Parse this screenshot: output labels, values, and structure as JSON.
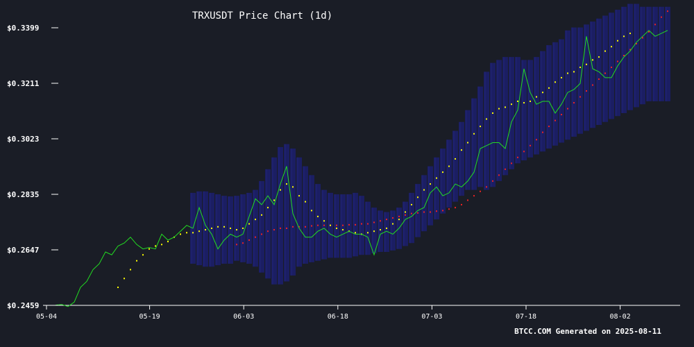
{
  "chart_data": {
    "type": "line",
    "title": "TRXUSDT Price Chart (1d)",
    "footer": "BTCC.COM Generated on 2025-08-11",
    "ylim": [
      0.2459,
      0.3399
    ],
    "y_ticks": [
      "$0.2459",
      "$0.2647",
      "$0.2835",
      "$0.3023",
      "$0.3211",
      "$0.3399"
    ],
    "y_tick_values": [
      0.2459,
      0.2647,
      0.2835,
      0.3023,
      0.3211,
      0.3399
    ],
    "x_ticks": [
      "05-04",
      "05-19",
      "06-03",
      "06-18",
      "07-03",
      "07-18",
      "08-02"
    ],
    "x_tick_index": [
      0,
      15,
      30,
      45,
      60,
      75,
      90
    ],
    "grid": false,
    "legend": "none",
    "colors": {
      "background": "#1a1d26",
      "price": "#22dd22",
      "ma20": "#ffff00",
      "ma50": "#ee2222",
      "bollinger": "#1c1f6e",
      "axis": "#ffffff"
    },
    "series": [
      {
        "key": "price",
        "values": [
          0.246,
          0.2462,
          0.2455,
          0.247,
          0.252,
          0.254,
          0.258,
          0.26,
          0.264,
          0.263,
          0.266,
          0.267,
          0.269,
          0.2665,
          0.265,
          0.2655,
          0.265,
          0.27,
          0.268,
          0.269,
          0.271,
          0.273,
          0.272,
          0.279,
          0.273,
          0.27,
          0.265,
          0.268,
          0.27,
          0.269,
          0.27,
          0.276,
          0.282,
          0.28,
          0.283,
          0.28,
          0.287,
          0.293,
          0.277,
          0.272,
          0.269,
          0.269,
          0.271,
          0.272,
          0.27,
          0.269,
          0.27,
          0.271,
          0.27,
          0.27,
          0.269,
          0.263,
          0.27,
          0.271,
          0.27,
          0.272,
          0.275,
          0.276,
          0.278,
          0.279,
          0.284,
          0.286,
          0.283,
          0.284,
          0.287,
          0.286,
          0.288,
          0.291,
          0.299,
          0.3,
          0.301,
          0.301,
          0.299,
          0.308,
          0.312,
          0.326,
          0.318,
          0.314,
          0.315,
          0.315,
          0.311,
          0.314,
          0.318,
          0.319,
          0.321,
          0.337,
          0.326,
          0.325,
          0.323,
          0.323,
          0.327,
          0.33,
          0.332,
          0.335,
          0.337,
          0.339,
          0.337,
          0.338,
          0.339
        ]
      },
      {
        "key": "ma20",
        "start": 10,
        "values": [
          0.252,
          0.255,
          0.258,
          0.261,
          0.263,
          0.265,
          0.266,
          0.2665,
          0.2675,
          0.269,
          0.27,
          0.2705,
          0.2705,
          0.271,
          0.2715,
          0.272,
          0.2725,
          0.2725,
          0.272,
          0.2715,
          0.272,
          0.2735,
          0.275,
          0.2765,
          0.279,
          0.2815,
          0.285,
          0.287,
          0.286,
          0.283,
          0.281,
          0.278,
          0.276,
          0.2745,
          0.273,
          0.272,
          0.2715,
          0.271,
          0.2705,
          0.27,
          0.2705,
          0.271,
          0.2715,
          0.272,
          0.2735,
          0.275,
          0.2775,
          0.28,
          0.2825,
          0.285,
          0.287,
          0.289,
          0.291,
          0.293,
          0.2955,
          0.2985,
          0.301,
          0.304,
          0.3065,
          0.309,
          0.311,
          0.3125,
          0.313,
          0.314,
          0.315,
          0.3145,
          0.315,
          0.3165,
          0.318,
          0.3195,
          0.3215,
          0.323,
          0.3245,
          0.325,
          0.3265,
          0.3275,
          0.329,
          0.33,
          0.332,
          0.3335,
          0.3355,
          0.337,
          0.338
        ]
      },
      {
        "key": "ma50",
        "start": 29,
        "values": [
          0.2665,
          0.267,
          0.268,
          0.269,
          0.27,
          0.271,
          0.2715,
          0.272,
          0.272,
          0.2725,
          0.2725,
          0.2725,
          0.2728,
          0.273,
          0.273,
          0.273,
          0.273,
          0.273,
          0.2732,
          0.2732,
          0.2735,
          0.2735,
          0.274,
          0.2745,
          0.275,
          0.2755,
          0.276,
          0.2765,
          0.277,
          0.2772,
          0.2775,
          0.2775,
          0.2778,
          0.278,
          0.2785,
          0.279,
          0.28,
          0.2815,
          0.283,
          0.2845,
          0.286,
          0.288,
          0.29,
          0.292,
          0.294,
          0.296,
          0.298,
          0.3,
          0.302,
          0.3045,
          0.3065,
          0.3085,
          0.3105,
          0.3125,
          0.3145,
          0.3165,
          0.3185,
          0.3205,
          0.3225,
          0.3245,
          0.3265,
          0.3285,
          0.3305,
          0.3325,
          0.3345,
          0.3365,
          0.3385,
          0.341,
          0.3435,
          0.3455
        ]
      },
      {
        "key": "bollinger",
        "start": 22,
        "upper": [
          0.284,
          0.2845,
          0.2845,
          0.284,
          0.2835,
          0.283,
          0.2828,
          0.283,
          0.2835,
          0.284,
          0.285,
          0.288,
          0.292,
          0.296,
          0.2995,
          0.3005,
          0.299,
          0.296,
          0.293,
          0.29,
          0.287,
          0.285,
          0.284,
          0.2835,
          0.2835,
          0.2835,
          0.284,
          0.283,
          0.281,
          0.279,
          0.278,
          0.2775,
          0.278,
          0.279,
          0.281,
          0.284,
          0.287,
          0.29,
          0.293,
          0.296,
          0.299,
          0.302,
          0.305,
          0.308,
          0.312,
          0.316,
          0.32,
          0.325,
          0.328,
          0.329,
          0.33,
          0.33,
          0.33,
          0.329,
          0.329,
          0.33,
          0.332,
          0.334,
          0.335,
          0.336,
          0.339,
          0.34,
          0.34,
          0.341,
          0.342,
          0.343,
          0.344,
          0.345,
          0.346,
          0.347,
          0.348,
          0.348,
          0.347,
          0.347,
          0.347,
          0.347,
          0.347
        ],
        "lower": [
          0.26,
          0.2595,
          0.259,
          0.259,
          0.2595,
          0.26,
          0.26,
          0.261,
          0.2605,
          0.26,
          0.259,
          0.257,
          0.255,
          0.253,
          0.253,
          0.254,
          0.256,
          0.259,
          0.26,
          0.2605,
          0.261,
          0.2615,
          0.262,
          0.262,
          0.262,
          0.262,
          0.2625,
          0.263,
          0.263,
          0.2635,
          0.264,
          0.264,
          0.2645,
          0.265,
          0.266,
          0.267,
          0.269,
          0.271,
          0.273,
          0.275,
          0.277,
          0.279,
          0.281,
          0.283,
          0.285,
          0.285,
          0.286,
          0.285,
          0.286,
          0.288,
          0.29,
          0.292,
          0.294,
          0.295,
          0.296,
          0.297,
          0.298,
          0.299,
          0.3,
          0.301,
          0.302,
          0.303,
          0.304,
          0.305,
          0.306,
          0.307,
          0.308,
          0.309,
          0.31,
          0.311,
          0.312,
          0.313,
          0.314,
          0.315,
          0.315,
          0.315,
          0.315
        ]
      }
    ]
  }
}
